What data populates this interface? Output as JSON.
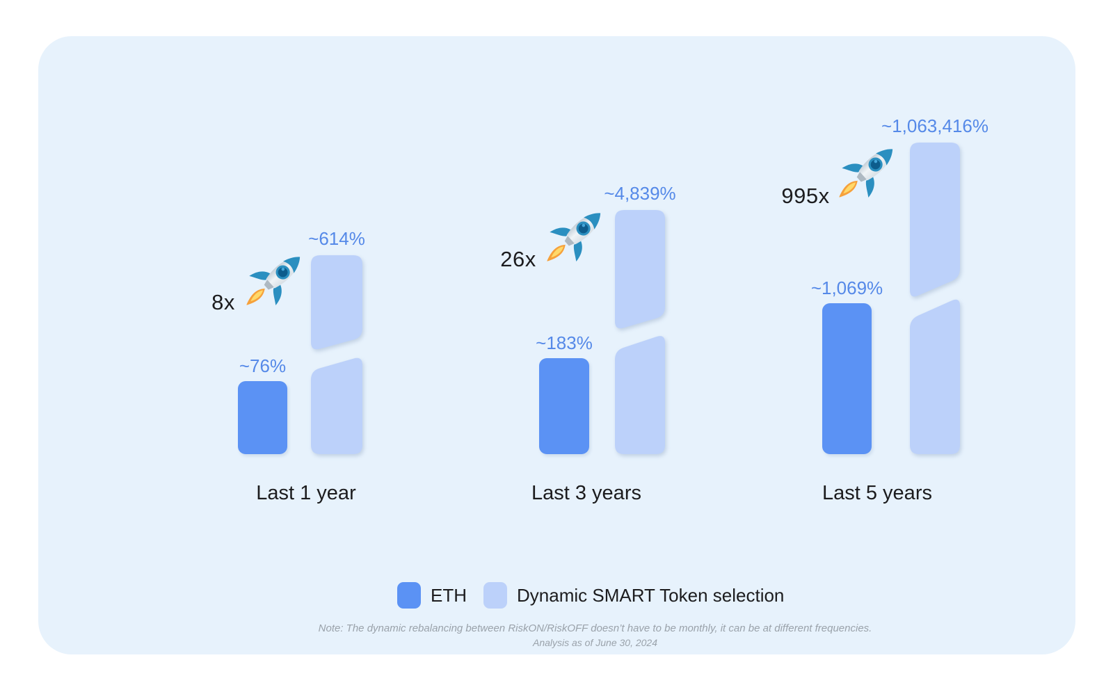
{
  "page": {
    "background": "#ffffff",
    "card_background": "#E7F2FC"
  },
  "chart_data": {
    "type": "bar",
    "title": "",
    "categories": [
      "Last 1 year",
      "Last 3 years",
      "Last 5 years"
    ],
    "series": [
      {
        "name": "ETH",
        "values_pct": [
          76,
          183,
          1069
        ],
        "color": "#5B92F4"
      },
      {
        "name": "Dynamic SMART Token selection",
        "values_pct": [
          614,
          4839,
          1063416
        ],
        "color": "#BCD1FA"
      }
    ],
    "groups": [
      {
        "category": "Last 1 year",
        "multiplier": "8x",
        "eth_label": "~76%",
        "eth_value_pct": 76,
        "smart_label": "~614%",
        "smart_value_pct": 614
      },
      {
        "category": "Last 3 years",
        "multiplier": "26x",
        "eth_label": "~183%",
        "eth_value_pct": 183,
        "smart_label": "~4,839%",
        "smart_value_pct": 4839
      },
      {
        "category": "Last 5 years",
        "multiplier": "995x",
        "eth_label": "~1,069%",
        "eth_value_pct": 1069,
        "smart_label": "~1,063,416%",
        "smart_value_pct": 1063416
      }
    ],
    "value_label_color": "#5589E8",
    "axis_break_on_smart_bars": true,
    "legend_position": "bottom",
    "grid": false
  },
  "legend": {
    "items": [
      {
        "label": "ETH",
        "color": "#5B92F4"
      },
      {
        "label": "Dynamic SMART Token selection",
        "color": "#BCD1FA"
      }
    ]
  },
  "footnotes": {
    "note": "Note: The dynamic rebalancing between RiskON/RiskOFF doesn’t have to be monthly, it can be at different frequencies.",
    "analysis": "Analysis as of June 30, 2024"
  },
  "icons": {
    "rocket": "rocket-emoji"
  }
}
